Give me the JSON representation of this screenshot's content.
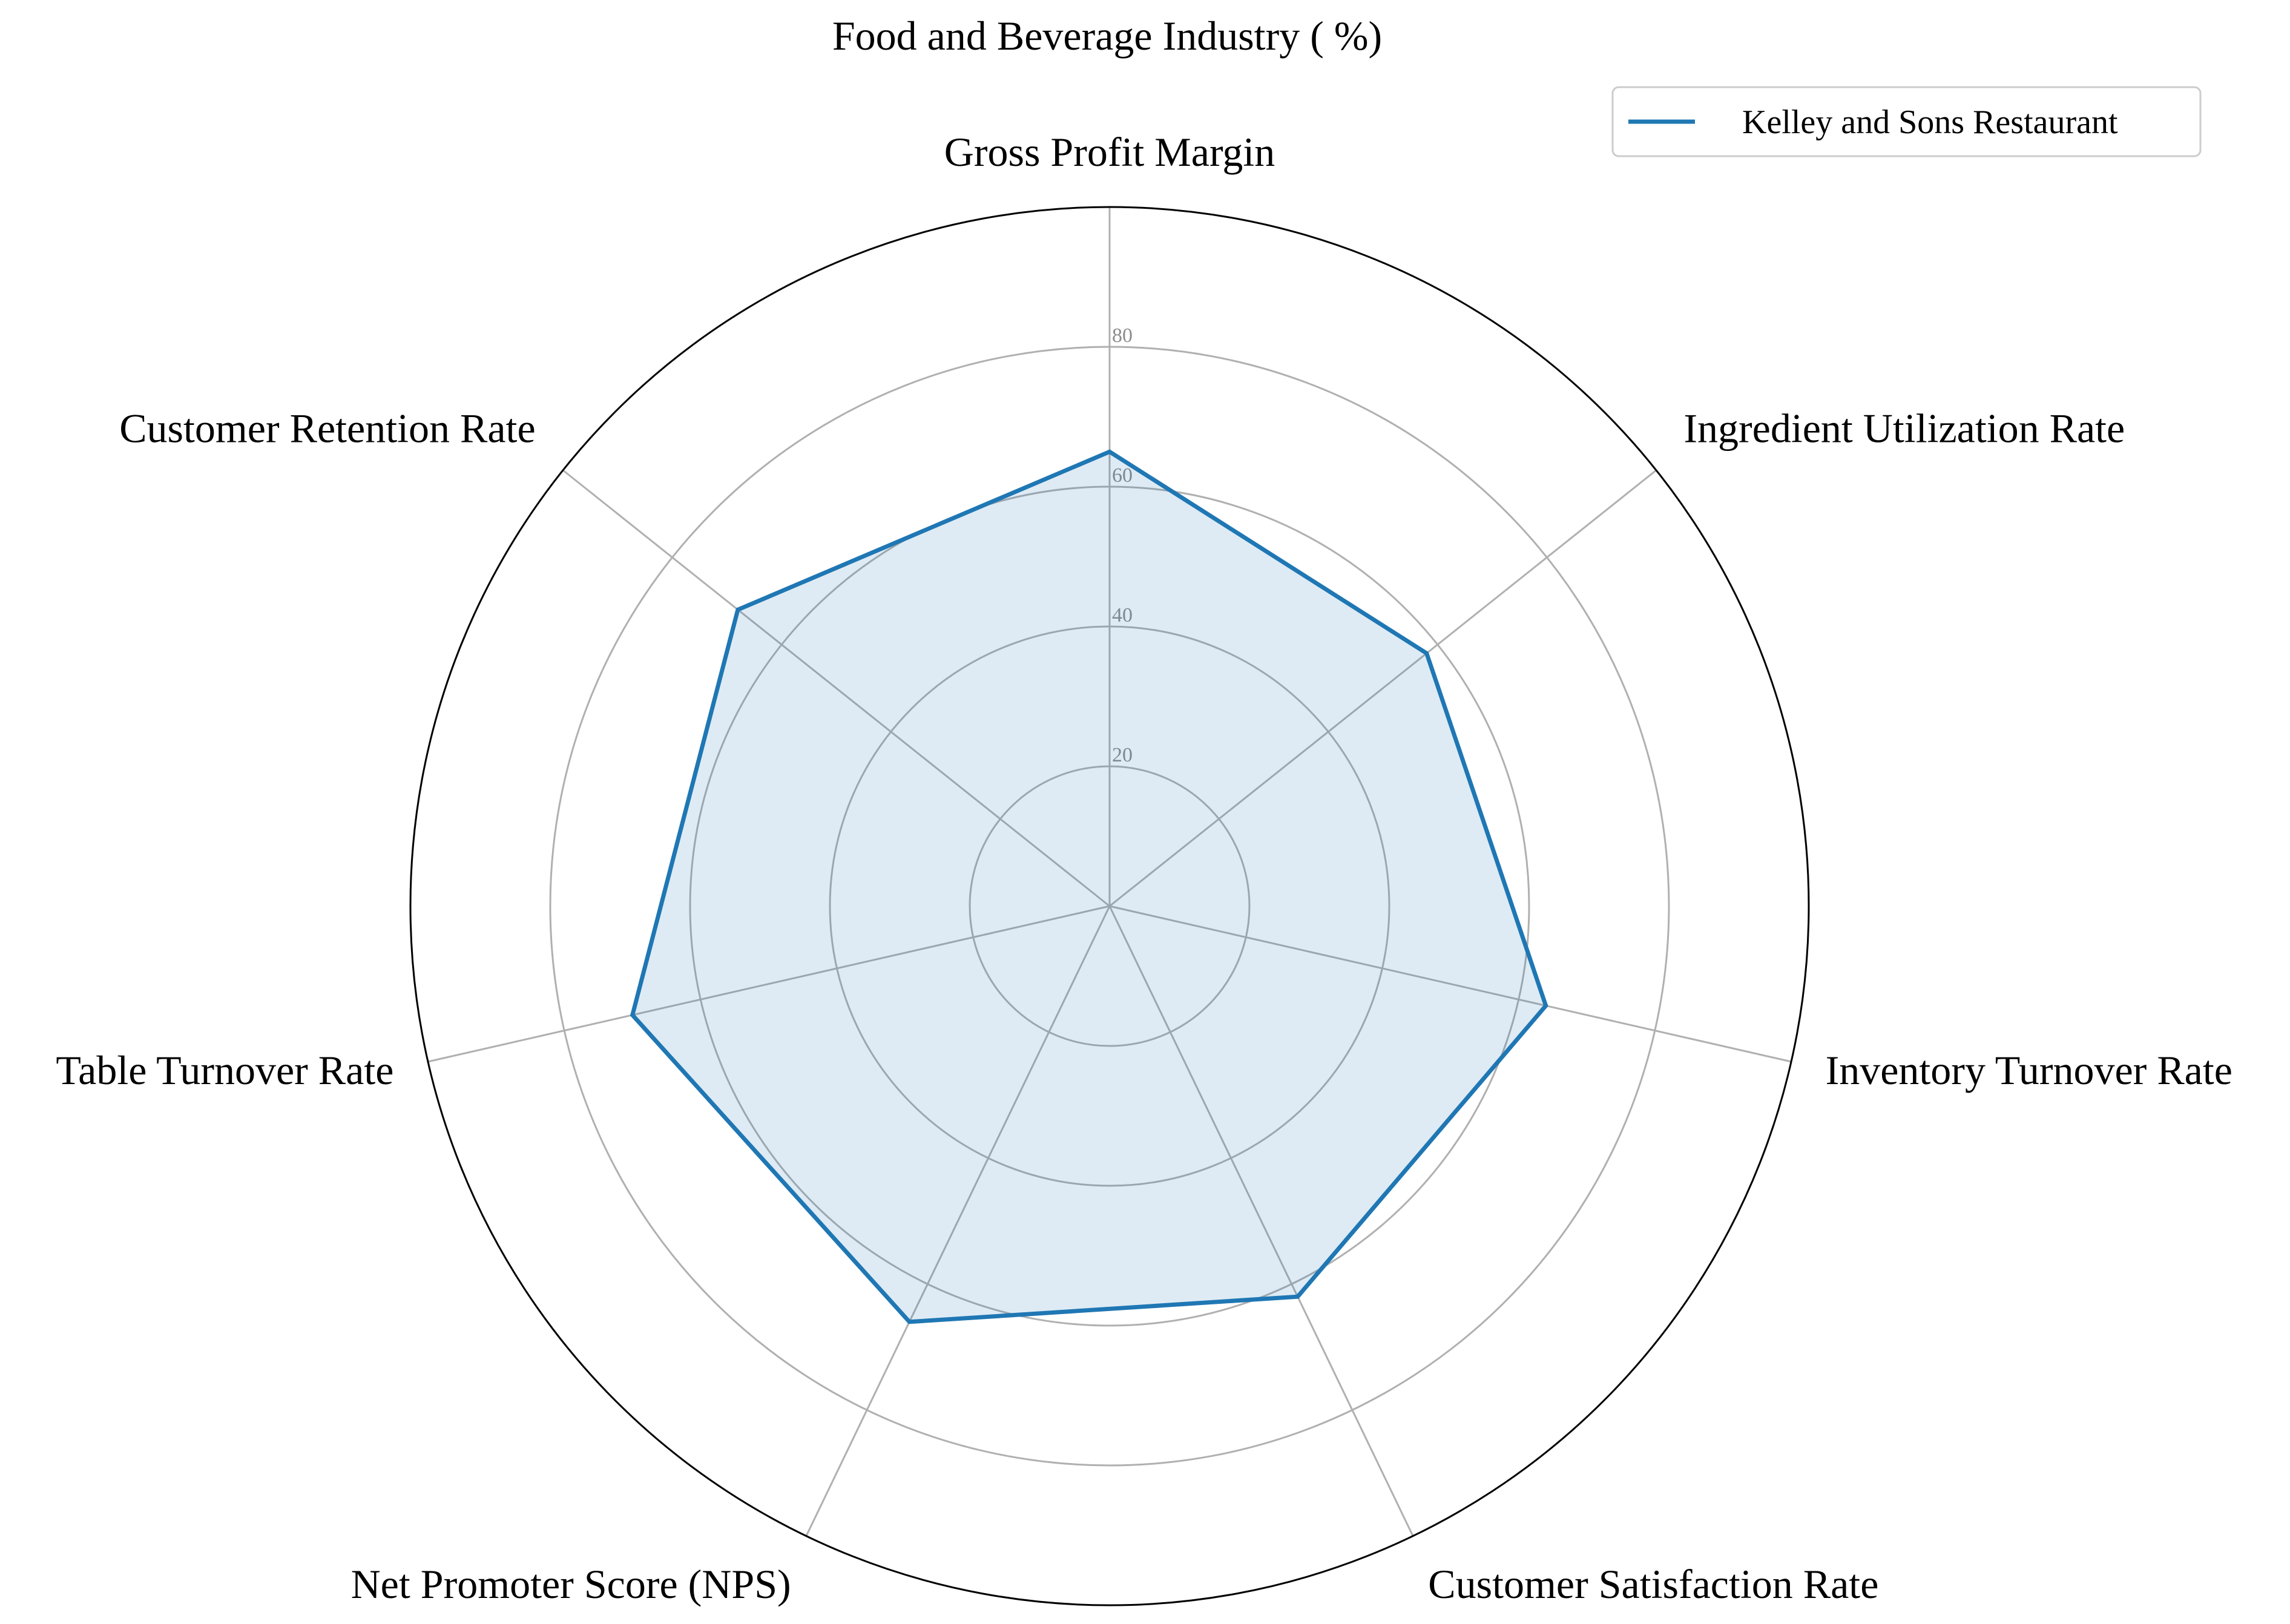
{
  "chart_data": {
    "type": "radar",
    "title": "Food and Beverage Industry ( %)",
    "categories": [
      "Gross Profit Margin",
      "Ingredient Utilization Rate",
      "Inventory Turnover Rate",
      "Customer Satisfaction Rate",
      "Net Promoter Score (NPS)",
      "Table Turnover Rate",
      "Customer Retention Rate"
    ],
    "series": [
      {
        "name": "Kelley and Sons Restaurant",
        "values": [
          65,
          58,
          64,
          62,
          66,
          70,
          68
        ],
        "color": "#1f77b4"
      }
    ],
    "rlim": [
      0,
      100
    ],
    "rticks": [
      20,
      40,
      60,
      80
    ],
    "rtick_labels": [
      "20",
      "40",
      "60",
      "80"
    ],
    "grid": true,
    "legend_position": "top-right"
  }
}
